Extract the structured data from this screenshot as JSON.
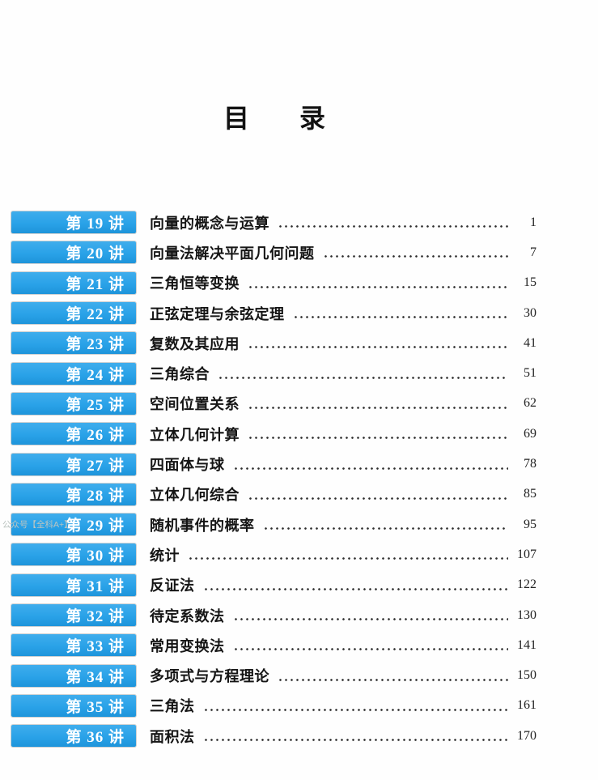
{
  "doc": {
    "title_char1": "目",
    "title_char2": "录"
  },
  "watermark": "公众号【全科A+】",
  "colors": {
    "badge_blue": "#2aa2e8",
    "badge_blue_light": "#3fadec",
    "badge_blue_dark": "#1e94da",
    "text": "#151515",
    "badge_text": "#ffffff"
  },
  "toc": {
    "entries": [
      {
        "badge": "第 19 讲",
        "title": "向量的概念与运算",
        "page": "1"
      },
      {
        "badge": "第 20 讲",
        "title": "向量法解决平面几何问题",
        "page": "7"
      },
      {
        "badge": "第 21 讲",
        "title": "三角恒等变换",
        "page": "15"
      },
      {
        "badge": "第 22 讲",
        "title": "正弦定理与余弦定理",
        "page": "30"
      },
      {
        "badge": "第 23 讲",
        "title": "复数及其应用",
        "page": "41"
      },
      {
        "badge": "第 24 讲",
        "title": "三角综合",
        "page": "51"
      },
      {
        "badge": "第 25 讲",
        "title": "空间位置关系",
        "page": "62"
      },
      {
        "badge": "第 26 讲",
        "title": "立体几何计算",
        "page": "69"
      },
      {
        "badge": "第 27 讲",
        "title": "四面体与球",
        "page": "78"
      },
      {
        "badge": "第 28 讲",
        "title": "立体几何综合",
        "page": "85"
      },
      {
        "badge": "第 29 讲",
        "title": "随机事件的概率",
        "page": "95"
      },
      {
        "badge": "第 30 讲",
        "title": "统计",
        "page": "107"
      },
      {
        "badge": "第 31 讲",
        "title": "反证法",
        "page": "122"
      },
      {
        "badge": "第 32 讲",
        "title": "待定系数法",
        "page": "130"
      },
      {
        "badge": "第 33 讲",
        "title": "常用变换法",
        "page": "141"
      },
      {
        "badge": "第 34 讲",
        "title": "多项式与方程理论",
        "page": "150"
      },
      {
        "badge": "第 35 讲",
        "title": "三角法",
        "page": "161"
      },
      {
        "badge": "第 36 讲",
        "title": "面积法",
        "page": "170"
      }
    ]
  }
}
